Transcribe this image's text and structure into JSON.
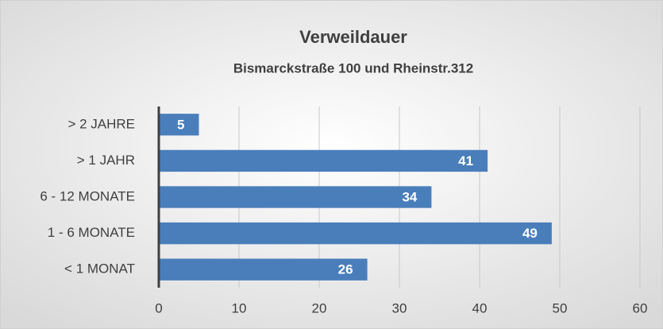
{
  "chart_data": {
    "type": "bar",
    "orientation": "horizontal",
    "title": "Verweildauer",
    "subtitle": "Bismarckstraße 100 und Rheinstr.312",
    "categories": [
      "> 2 JAHRE",
      "> 1 JAHR",
      "6 - 12 MONATE",
      "1 - 6 MONATE",
      "< 1 MONAT"
    ],
    "values": [
      5,
      41,
      34,
      49,
      26
    ],
    "color": "#4a7ebb",
    "xlim": [
      0,
      60
    ],
    "xticks": [
      0,
      10,
      20,
      30,
      40,
      50,
      60
    ],
    "grid": true
  }
}
